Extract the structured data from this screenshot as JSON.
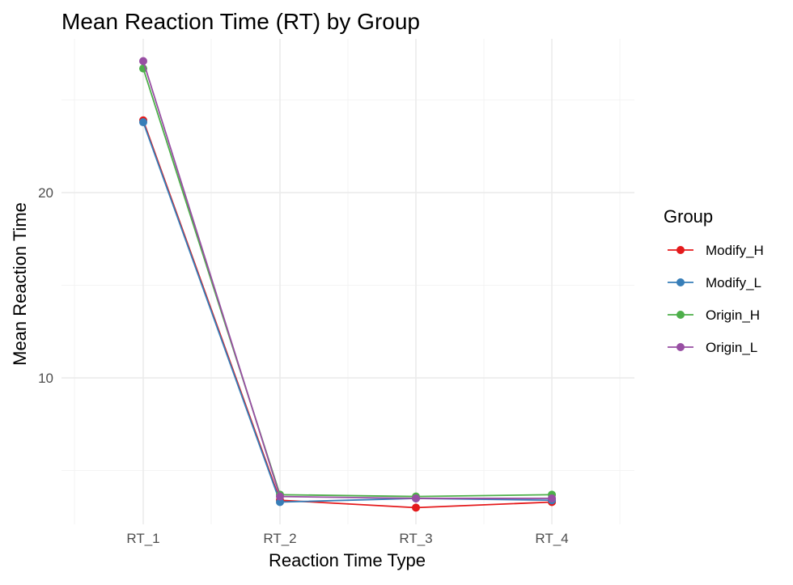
{
  "chart_data": {
    "type": "line",
    "title": "Mean Reaction Time (RT) by Group",
    "xlabel": "Reaction Time Type",
    "ylabel": "Mean Reaction Time",
    "categories": [
      "RT_1",
      "RT_2",
      "RT_3",
      "RT_4"
    ],
    "ylim": [
      2.1,
      28.3
    ],
    "yticks": [
      10,
      20
    ],
    "yticks_minor": [
      5,
      15,
      25
    ],
    "grid": true,
    "legend": {
      "title": "Group",
      "position": "right"
    },
    "series": [
      {
        "name": "Modify_H",
        "color": "#E41A1C",
        "values": [
          23.9,
          3.4,
          3.0,
          3.3
        ]
      },
      {
        "name": "Modify_L",
        "color": "#377EB8",
        "values": [
          23.8,
          3.3,
          3.5,
          3.4
        ]
      },
      {
        "name": "Origin_H",
        "color": "#4DAF4A",
        "values": [
          26.7,
          3.7,
          3.6,
          3.7
        ]
      },
      {
        "name": "Origin_L",
        "color": "#984EA3",
        "values": [
          27.1,
          3.6,
          3.5,
          3.5
        ]
      }
    ]
  }
}
